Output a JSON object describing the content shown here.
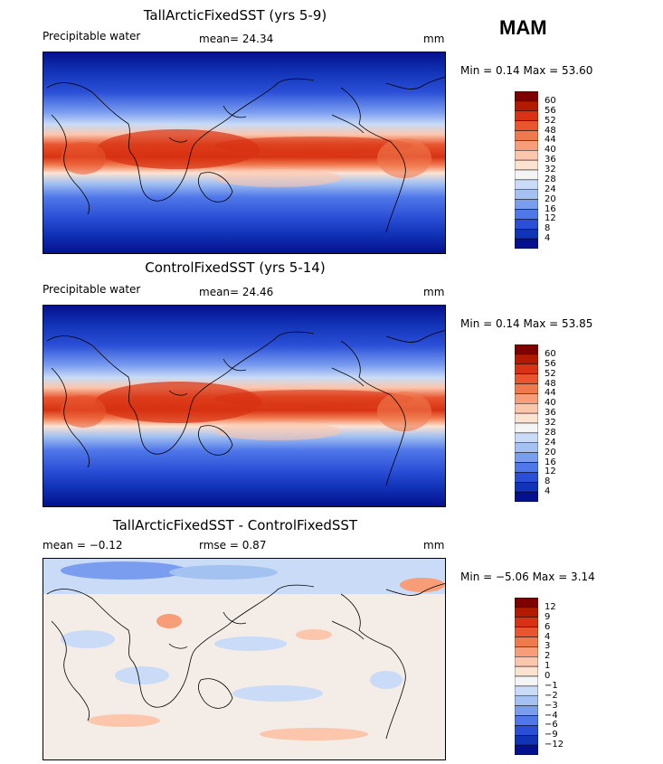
{
  "season": "MAM",
  "panels": [
    {
      "title": "TallArcticFixedSST (yrs 5-9)",
      "left_label": "Precipitable water",
      "mid_label": "mean=   24.34",
      "units": "mm",
      "min_max": "Min =    0.14  Max =   53.60",
      "levels": [
        "60",
        "56",
        "52",
        "48",
        "44",
        "40",
        "36",
        "32",
        "28",
        "24",
        "20",
        "16",
        "12",
        "8",
        "4"
      ],
      "colors": [
        "#7f0000",
        "#b31b00",
        "#d73213",
        "#e8552e",
        "#f07a4f",
        "#f79d78",
        "#fbc6ac",
        "#fde2d2",
        "#f4f4f4",
        "#c9dbf6",
        "#a3c1f1",
        "#7a9df0",
        "#4f77e8",
        "#2a4fd6",
        "#1133b8",
        "#04108c"
      ]
    },
    {
      "title": "ControlFixedSST (yrs 5-14)",
      "left_label": "Precipitable water",
      "mid_label": "mean=   24.46",
      "units": "mm",
      "min_max": "Min =    0.14  Max =   53.85",
      "levels": [
        "60",
        "56",
        "52",
        "48",
        "44",
        "40",
        "36",
        "32",
        "28",
        "24",
        "20",
        "16",
        "12",
        "8",
        "4"
      ],
      "colors": [
        "#7f0000",
        "#b31b00",
        "#d73213",
        "#e8552e",
        "#f07a4f",
        "#f79d78",
        "#fbc6ac",
        "#fde2d2",
        "#f4f4f4",
        "#c9dbf6",
        "#a3c1f1",
        "#7a9df0",
        "#4f77e8",
        "#2a4fd6",
        "#1133b8",
        "#04108c"
      ]
    },
    {
      "title": "TallArcticFixedSST - ControlFixedSST",
      "left_label": "mean =   −0.12",
      "mid_label": "rmse =    0.87",
      "units": "mm",
      "min_max": "Min =  −5.06  Max =    3.14",
      "levels": [
        "12",
        "9",
        "6",
        "4",
        "3",
        "2",
        "1",
        "0",
        "−1",
        "−2",
        "−3",
        "−4",
        "−6",
        "−9",
        "−12"
      ],
      "colors": [
        "#7f0000",
        "#b31b00",
        "#d73213",
        "#e8552e",
        "#f07a4f",
        "#f79d78",
        "#fbc6ac",
        "#fde2d2",
        "#f4f4f4",
        "#c9dbf6",
        "#a3c1f1",
        "#7a9df0",
        "#4f77e8",
        "#2a4fd6",
        "#1133b8",
        "#04108c"
      ]
    }
  ]
}
